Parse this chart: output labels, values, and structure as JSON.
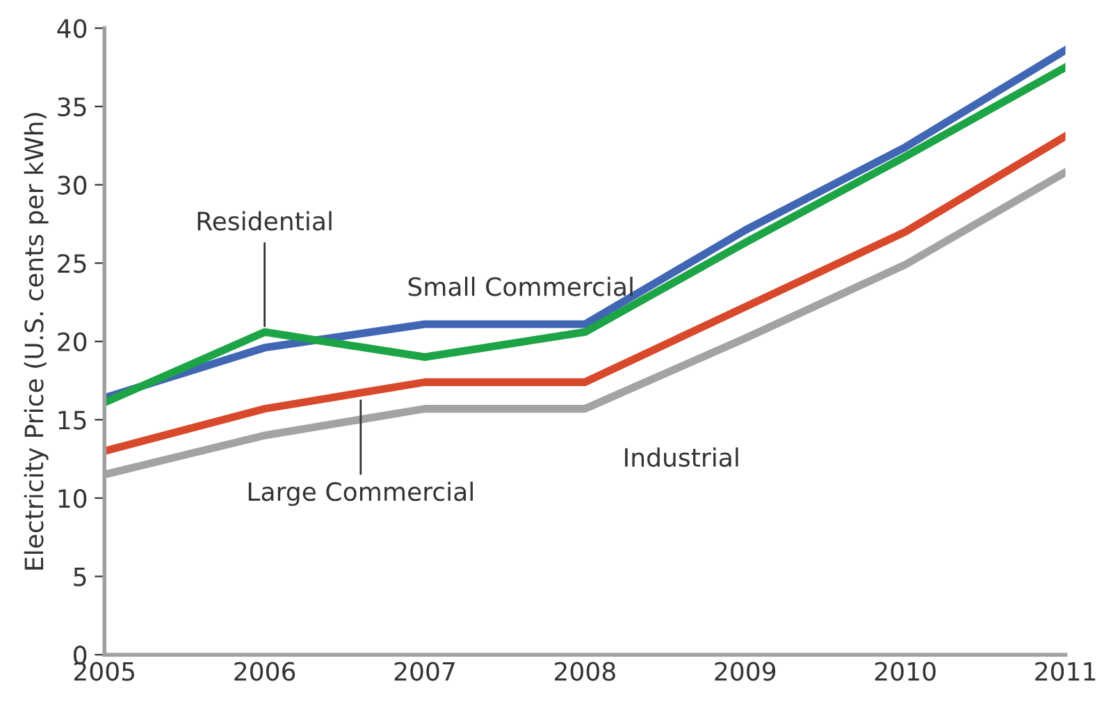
{
  "chart_data": {
    "type": "line",
    "ylabel": "Electricity Price (U.S. cents per kWh)",
    "x": [
      2005,
      2006,
      2007,
      2008,
      2009,
      2010,
      2011
    ],
    "series": [
      {
        "color": "#4066b4",
        "values": [
          16.4,
          19.6,
          21.1,
          21.1,
          27.1,
          32.4,
          38.6
        ]
      },
      {
        "color": "#1da446",
        "values": [
          16.1,
          20.6,
          19.0,
          20.6,
          26.3,
          31.8,
          37.5
        ]
      },
      {
        "color": "#d8492c",
        "values": [
          13.0,
          15.7,
          17.4,
          17.4,
          22.2,
          27.0,
          33.1
        ]
      },
      {
        "color": "#a3a3a6",
        "values": [
          11.5,
          14.0,
          15.7,
          15.7,
          20.2,
          24.9,
          30.8
        ]
      }
    ],
    "xlim": [
      2005,
      2011
    ],
    "xticks": [
      2005,
      2006,
      2007,
      2008,
      2009,
      2010,
      2011
    ],
    "ylim": [
      0,
      40
    ],
    "yticks": [
      0,
      5,
      10,
      15,
      20,
      25,
      30,
      35,
      40
    ],
    "grid": false,
    "legend": false,
    "marker": "none",
    "line_style": "solid",
    "annotations": [
      {
        "text": "Residential",
        "x": 2006,
        "y": 20.6
      },
      {
        "text": "Small Commercial",
        "x": 2007.6,
        "y": 21.1
      },
      {
        "text": "Industrial",
        "x": 2008,
        "y": 15.7
      },
      {
        "text": "Large Commercial",
        "x": 2006.6,
        "y": 16.6
      }
    ]
  }
}
